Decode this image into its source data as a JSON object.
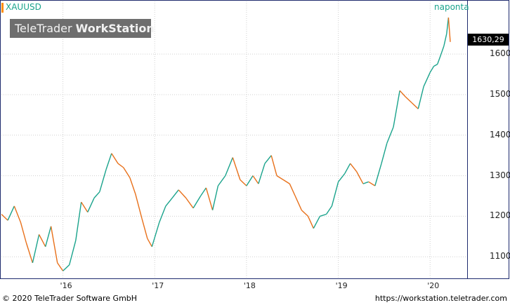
{
  "symbol": "XAUUSD",
  "period": "naponta",
  "logo": {
    "brand": "TeleTrader",
    "product": "WorkStation"
  },
  "last_price": "1630,29",
  "footer": {
    "copyright": "© 2020  TeleTrader Software GmbH",
    "url": "https://workstation.teletrader.com"
  },
  "colors": {
    "up": "#1aa38c",
    "down": "#e8701a",
    "frame": "#1f2b6e",
    "grid": "#d0d0d0"
  },
  "chart_data": {
    "type": "line",
    "title": "XAUUSD",
    "y_ticks": [
      "1100",
      "1200",
      "1300",
      "1400",
      "1500",
      "1600"
    ],
    "x_ticks": [
      "'16",
      "'17",
      "'18",
      "'19",
      "'20"
    ],
    "ylim": [
      1045,
      1730
    ],
    "xlim": [
      2015.33,
      2020.22
    ],
    "grid": true,
    "x": [
      2015.33,
      2015.4,
      2015.47,
      2015.54,
      2015.6,
      2015.67,
      2015.74,
      2015.81,
      2015.87,
      2015.94,
      2016.0,
      2016.07,
      2016.14,
      2016.2,
      2016.27,
      2016.34,
      2016.4,
      2016.47,
      2016.53,
      2016.6,
      2016.66,
      2016.73,
      2016.79,
      2016.86,
      2016.92,
      2016.97,
      2017.05,
      2017.12,
      2017.19,
      2017.26,
      2017.34,
      2017.42,
      2017.5,
      2017.56,
      2017.63,
      2017.69,
      2017.77,
      2017.85,
      2017.93,
      2018.0,
      2018.07,
      2018.13,
      2018.2,
      2018.27,
      2018.33,
      2018.4,
      2018.47,
      2018.53,
      2018.6,
      2018.67,
      2018.73,
      2018.8,
      2018.87,
      2018.93,
      2019.0,
      2019.07,
      2019.13,
      2019.2,
      2019.27,
      2019.33,
      2019.4,
      2019.47,
      2019.53,
      2019.6,
      2019.67,
      2019.73,
      2019.8,
      2019.87,
      2019.93,
      2020.0,
      2020.04,
      2020.08,
      2020.12,
      2020.15,
      2020.18,
      2020.2,
      2020.22
    ],
    "values": [
      1205,
      1190,
      1225,
      1185,
      1135,
      1085,
      1155,
      1125,
      1175,
      1085,
      1065,
      1080,
      1140,
      1235,
      1210,
      1245,
      1260,
      1315,
      1355,
      1330,
      1320,
      1295,
      1255,
      1195,
      1145,
      1125,
      1185,
      1225,
      1245,
      1265,
      1245,
      1220,
      1250,
      1270,
      1215,
      1275,
      1300,
      1345,
      1290,
      1275,
      1300,
      1280,
      1330,
      1350,
      1300,
      1290,
      1280,
      1250,
      1215,
      1200,
      1170,
      1200,
      1205,
      1225,
      1285,
      1305,
      1330,
      1310,
      1280,
      1285,
      1275,
      1330,
      1380,
      1420,
      1510,
      1495,
      1480,
      1465,
      1520,
      1555,
      1570,
      1575,
      1600,
      1620,
      1650,
      1690,
      1630
    ]
  }
}
